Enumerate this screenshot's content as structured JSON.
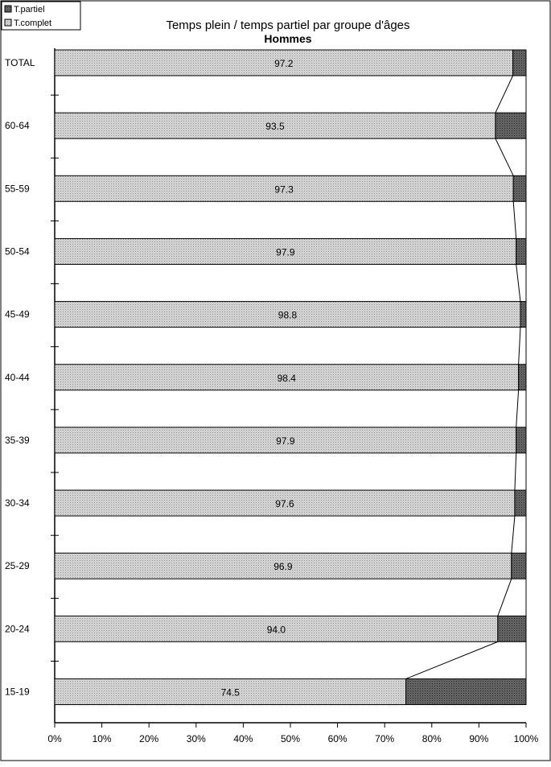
{
  "chart_data": {
    "type": "bar",
    "stacked": true,
    "orientation": "horizontal",
    "title": "Temps plein / temps partiel par groupe d'âges",
    "subtitle": "Hommes",
    "categories": [
      "TOTAL",
      "60-64",
      "55-59",
      "50-54",
      "45-49",
      "40-44",
      "35-39",
      "30-34",
      "25-29",
      "20-24",
      "15-19"
    ],
    "series": [
      {
        "name": "T.complet",
        "values": [
          97.2,
          93.5,
          97.3,
          97.9,
          98.8,
          98.4,
          97.9,
          97.6,
          96.9,
          94.0,
          74.5
        ],
        "labels": [
          "97.2",
          "93.5",
          "97.3",
          "97.9",
          "98.8",
          "98.4",
          "97.9",
          "97.6",
          "96.9",
          "94.0",
          "74.5"
        ]
      },
      {
        "name": "T.partiel",
        "values": [
          2.8,
          6.5,
          2.7,
          2.1,
          1.2,
          1.6,
          2.1,
          2.4,
          3.1,
          6.0,
          25.5
        ]
      }
    ],
    "xlim": [
      0,
      100
    ],
    "xticks": [
      "0%",
      "10%",
      "20%",
      "30%",
      "40%",
      "50%",
      "60%",
      "70%",
      "80%",
      "90%",
      "100%"
    ],
    "legend_placement": "top-left",
    "series_lines": true,
    "colors": {
      "complet": "#cfcfcf",
      "partiel": "#555555",
      "frame": "#000000"
    }
  }
}
